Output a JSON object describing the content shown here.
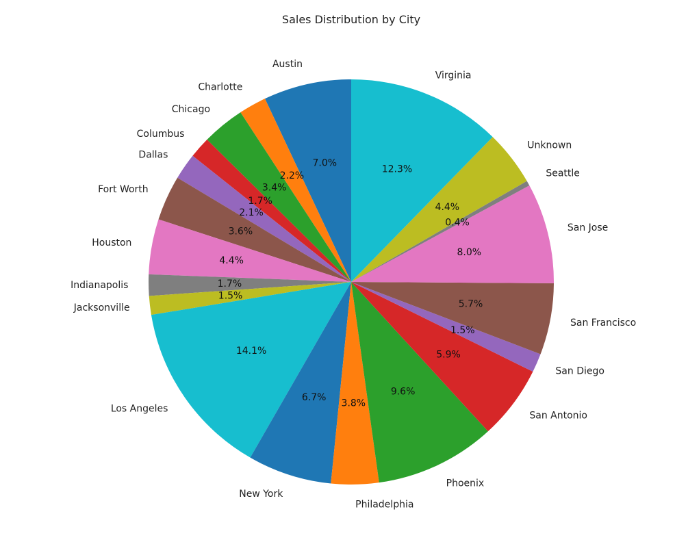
{
  "chart_data": {
    "type": "pie",
    "title": "Sales Distribution by City",
    "start_angle_deg": 90,
    "direction": "counterclockwise",
    "slices": [
      {
        "label": "Austin",
        "pct_label": "7.0%",
        "value": 7.0,
        "color": "#1f77b4"
      },
      {
        "label": "Charlotte",
        "pct_label": "2.2%",
        "value": 2.2,
        "color": "#ff7f0e"
      },
      {
        "label": "Chicago",
        "pct_label": "3.4%",
        "value": 3.4,
        "color": "#2ca02c"
      },
      {
        "label": "Columbus",
        "pct_label": "1.7%",
        "value": 1.7,
        "color": "#d62728"
      },
      {
        "label": "Dallas",
        "pct_label": "2.1%",
        "value": 2.1,
        "color": "#9467bd"
      },
      {
        "label": "Fort Worth",
        "pct_label": "3.6%",
        "value": 3.6,
        "color": "#8c564b"
      },
      {
        "label": "Houston",
        "pct_label": "4.4%",
        "value": 4.4,
        "color": "#e377c2"
      },
      {
        "label": "Indianapolis",
        "pct_label": "1.7%",
        "value": 1.7,
        "color": "#7f7f7f"
      },
      {
        "label": "Jacksonville",
        "pct_label": "1.5%",
        "value": 1.5,
        "color": "#bcbd22"
      },
      {
        "label": "Los Angeles",
        "pct_label": "14.1%",
        "value": 14.1,
        "color": "#17becf"
      },
      {
        "label": "New York",
        "pct_label": "6.7%",
        "value": 6.7,
        "color": "#1f77b4"
      },
      {
        "label": "Philadelphia",
        "pct_label": "3.8%",
        "value": 3.8,
        "color": "#ff7f0e"
      },
      {
        "label": "Phoenix",
        "pct_label": "9.6%",
        "value": 9.6,
        "color": "#2ca02c"
      },
      {
        "label": "San Antonio",
        "pct_label": "5.9%",
        "value": 5.9,
        "color": "#d62728"
      },
      {
        "label": "San Diego",
        "pct_label": "1.5%",
        "value": 1.5,
        "color": "#9467bd"
      },
      {
        "label": "San Francisco",
        "pct_label": "5.7%",
        "value": 5.7,
        "color": "#8c564b"
      },
      {
        "label": "San Jose",
        "pct_label": "8.0%",
        "value": 8.0,
        "color": "#e377c2"
      },
      {
        "label": "Seattle",
        "pct_label": "0.4%",
        "value": 0.4,
        "color": "#7f7f7f"
      },
      {
        "label": "Unknown",
        "pct_label": "4.4%",
        "value": 4.4,
        "color": "#bcbd22"
      },
      {
        "label": "Virginia",
        "pct_label": "12.3%",
        "value": 12.3,
        "color": "#17becf"
      }
    ]
  }
}
